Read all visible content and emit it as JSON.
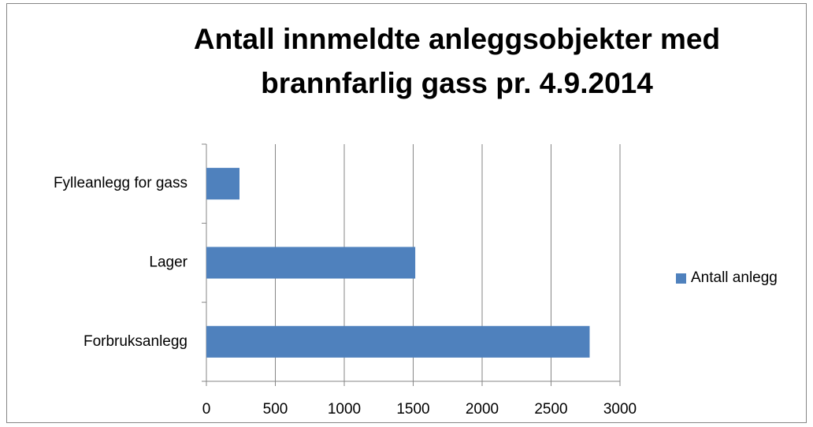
{
  "chart_data": {
    "type": "bar",
    "orientation": "horizontal",
    "title": "Antall innmeldte anleggsobjekter med brannfarlig gass pr. 4.9.2014",
    "categories": [
      "Forbruksanlegg",
      "Lager",
      "Fylleanlegg for gass"
    ],
    "series": [
      {
        "name": "Antall anlegg",
        "color": "#4f81bd",
        "values": [
          2780,
          1515,
          240
        ]
      }
    ],
    "xlim": [
      0,
      3000
    ],
    "xticks": [
      0,
      500,
      1000,
      1500,
      2000,
      2500,
      3000
    ],
    "grid": true,
    "legend": "right"
  }
}
